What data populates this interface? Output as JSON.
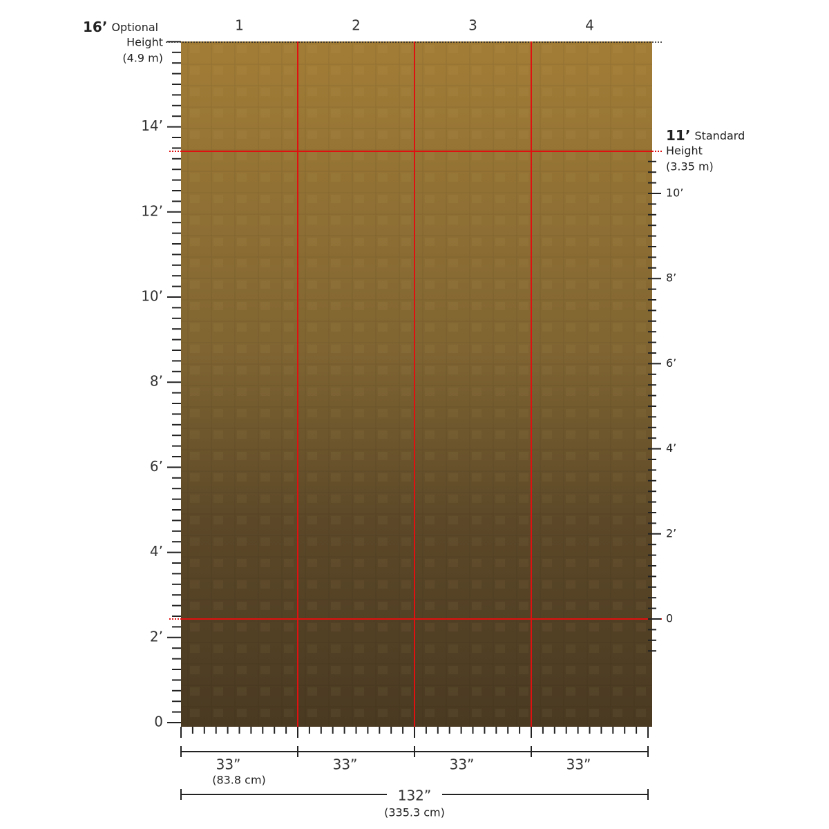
{
  "optional_height": {
    "feet": "16’",
    "word": "Optional",
    "word2": "Height",
    "metric": "(4.9 m)"
  },
  "panels": [
    "1",
    "2",
    "3",
    "4"
  ],
  "left_scale": [
    "14’",
    "12’",
    "10’",
    "8’",
    "6’",
    "4’",
    "2’",
    "0"
  ],
  "standard_height": {
    "feet": "11’",
    "word": "Standard",
    "word2": "Height",
    "metric": "(3.35 m)"
  },
  "right_scale": [
    "10’",
    "8’",
    "6’",
    "4’",
    "2’",
    "0"
  ],
  "panel_widths": [
    "33”",
    "33”",
    "33”",
    "33”"
  ],
  "panel_width_metric": "(83.8 cm)",
  "total_width": "132”",
  "total_width_metric": "(335.3 cm)"
}
